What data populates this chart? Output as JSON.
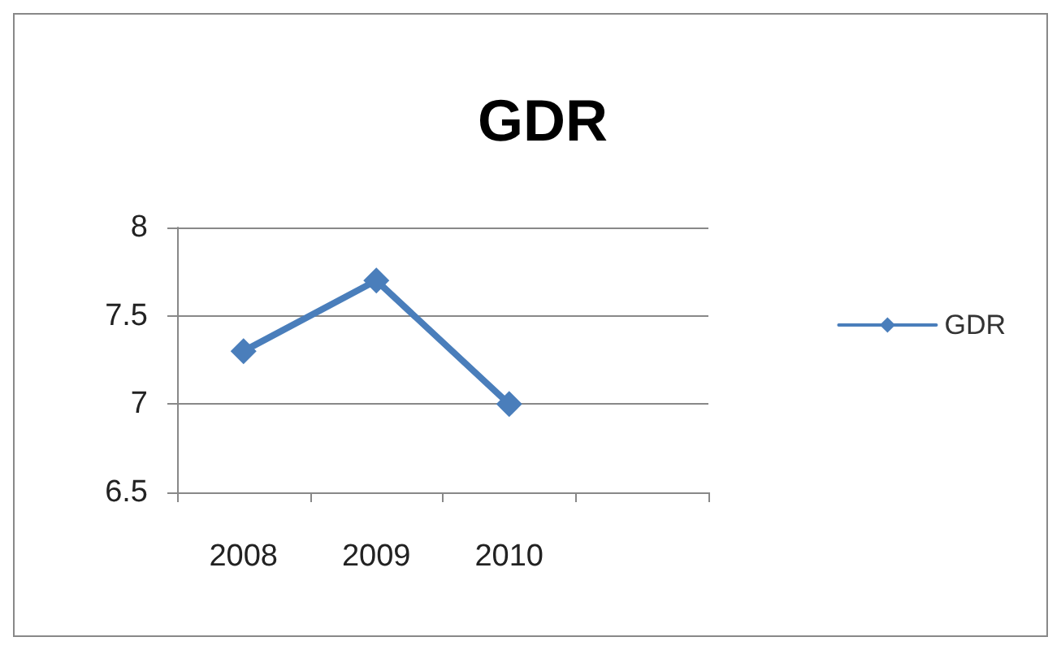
{
  "chart_data": {
    "type": "line",
    "title": "GDR",
    "categories": [
      "2008",
      "2009",
      "2010",
      null
    ],
    "series": [
      {
        "name": "GDR",
        "color": "#4a7ebb",
        "values": [
          7.3,
          7.7,
          7.0,
          null
        ]
      }
    ],
    "ylim": [
      6.5,
      8
    ],
    "yticks": [
      6.5,
      7,
      7.5,
      8
    ],
    "grid": "y",
    "legend": "right",
    "marker": "diamond",
    "line_style": "solid"
  }
}
